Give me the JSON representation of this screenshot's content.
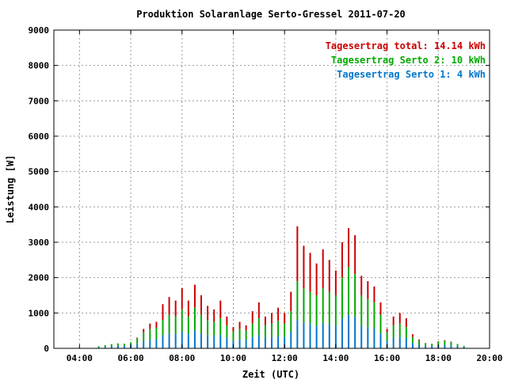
{
  "chart_data": {
    "type": "bar",
    "title": "Produktion Solaranlage Serto-Gressel 2011-07-20",
    "xlabel": "Zeit (UTC)",
    "ylabel": "Leistung [W]",
    "ylim": [
      0,
      9000
    ],
    "yticks": [
      0,
      1000,
      2000,
      3000,
      4000,
      5000,
      6000,
      7000,
      8000,
      9000
    ],
    "xlim": [
      "03:00",
      "20:00"
    ],
    "xticks": [
      "04:00",
      "06:00",
      "08:00",
      "10:00",
      "12:00",
      "14:00",
      "16:00",
      "18:00",
      "20:00"
    ],
    "grid": true,
    "legend_position": "top-right",
    "colors": {
      "total": "#cc0000",
      "serto2": "#00aa00",
      "serto1": "#0077cc"
    },
    "legend": [
      {
        "key": "total",
        "text": "Tagesertrag total: 14.14 kWh"
      },
      {
        "key": "serto2",
        "text": "Tagesertrag Serto 2: 10 kWh"
      },
      {
        "key": "serto1",
        "text": "Tagesertrag Serto 1: 4 kWh"
      }
    ],
    "series": [
      {
        "key": "total",
        "name": "total",
        "note": "stacked bars: serto1 (bottom) + serto2 (middle) + remainder up to total (top)"
      },
      {
        "key": "serto2",
        "name": "Serto 2"
      },
      {
        "key": "serto1",
        "name": "Serto 1"
      }
    ],
    "x": [
      "04:45",
      "05:00",
      "05:15",
      "05:30",
      "05:45",
      "06:00",
      "06:15",
      "06:30",
      "06:45",
      "07:00",
      "07:15",
      "07:30",
      "07:45",
      "08:00",
      "08:15",
      "08:30",
      "08:45",
      "09:00",
      "09:15",
      "09:30",
      "09:45",
      "10:00",
      "10:15",
      "10:30",
      "10:45",
      "11:00",
      "11:15",
      "11:30",
      "11:45",
      "12:00",
      "12:15",
      "12:30",
      "12:45",
      "13:00",
      "13:15",
      "13:30",
      "13:45",
      "14:00",
      "14:15",
      "14:30",
      "14:45",
      "15:00",
      "15:15",
      "15:30",
      "15:45",
      "16:00",
      "16:15",
      "16:30",
      "16:45",
      "17:00",
      "17:15",
      "17:30",
      "17:45",
      "18:00",
      "18:15",
      "18:30",
      "18:45",
      "19:00"
    ],
    "total_values": [
      60,
      90,
      120,
      140,
      130,
      170,
      300,
      550,
      700,
      750,
      1250,
      1450,
      1350,
      1700,
      1350,
      1800,
      1500,
      1200,
      1100,
      1350,
      900,
      600,
      750,
      650,
      1050,
      1300,
      900,
      1000,
      1150,
      1000,
      1600,
      3450,
      2900,
      2700,
      2400,
      2800,
      2500,
      2200,
      3000,
      3400,
      3200,
      2050,
      1900,
      1750,
      1300,
      550,
      900,
      1000,
      850,
      400,
      250,
      150,
      130,
      200,
      230,
      190,
      120,
      70
    ],
    "serto2_values": [
      60,
      90,
      120,
      140,
      130,
      170,
      280,
      450,
      550,
      580,
      800,
      950,
      900,
      1100,
      900,
      1150,
      950,
      800,
      750,
      850,
      650,
      480,
      550,
      500,
      700,
      850,
      650,
      700,
      780,
      700,
      1050,
      1900,
      1700,
      1600,
      1500,
      1700,
      1600,
      1500,
      2000,
      2300,
      2100,
      1500,
      1400,
      1300,
      950,
      450,
      650,
      700,
      600,
      320,
      220,
      140,
      120,
      190,
      210,
      180,
      110,
      65
    ],
    "serto1_values": [
      30,
      40,
      60,
      70,
      60,
      80,
      130,
      200,
      240,
      260,
      360,
      420,
      400,
      480,
      400,
      500,
      420,
      360,
      340,
      380,
      300,
      220,
      260,
      240,
      320,
      380,
      300,
      320,
      350,
      320,
      460,
      800,
      720,
      680,
      640,
      720,
      680,
      640,
      830,
      950,
      880,
      640,
      600,
      560,
      420,
      200,
      300,
      320,
      280,
      150,
      100,
      70,
      60,
      90,
      100,
      85,
      55,
      35
    ]
  }
}
